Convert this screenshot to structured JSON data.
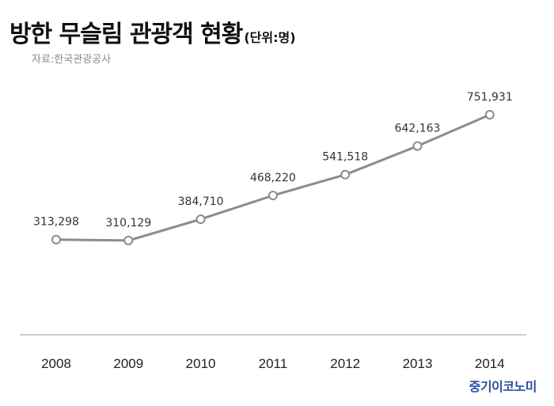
{
  "header": {
    "title": "방한 무슬림 관광객 현황",
    "unit": "(단위:명)",
    "source": "자료:한국관광공사"
  },
  "brand": "중기이코노미",
  "colors": {
    "line": "#8c8c8c",
    "marker_fill": "#ffffff",
    "axis": "#999999",
    "brand": "#2d4fa0"
  },
  "chart_data": {
    "type": "line",
    "categories": [
      "2008",
      "2009",
      "2010",
      "2011",
      "2012",
      "2013",
      "2014"
    ],
    "values": [
      313298,
      310129,
      384710,
      468220,
      541518,
      642163,
      751931
    ],
    "value_labels": [
      "313,298",
      "310,129",
      "384,710",
      "468,220",
      "541,518",
      "642,163",
      "751,931"
    ],
    "title": "방한 무슬림 관광객 현황",
    "ylabel": "",
    "xlabel": "",
    "ylim": [
      0,
      800000
    ],
    "grid": false,
    "legend": "none"
  }
}
